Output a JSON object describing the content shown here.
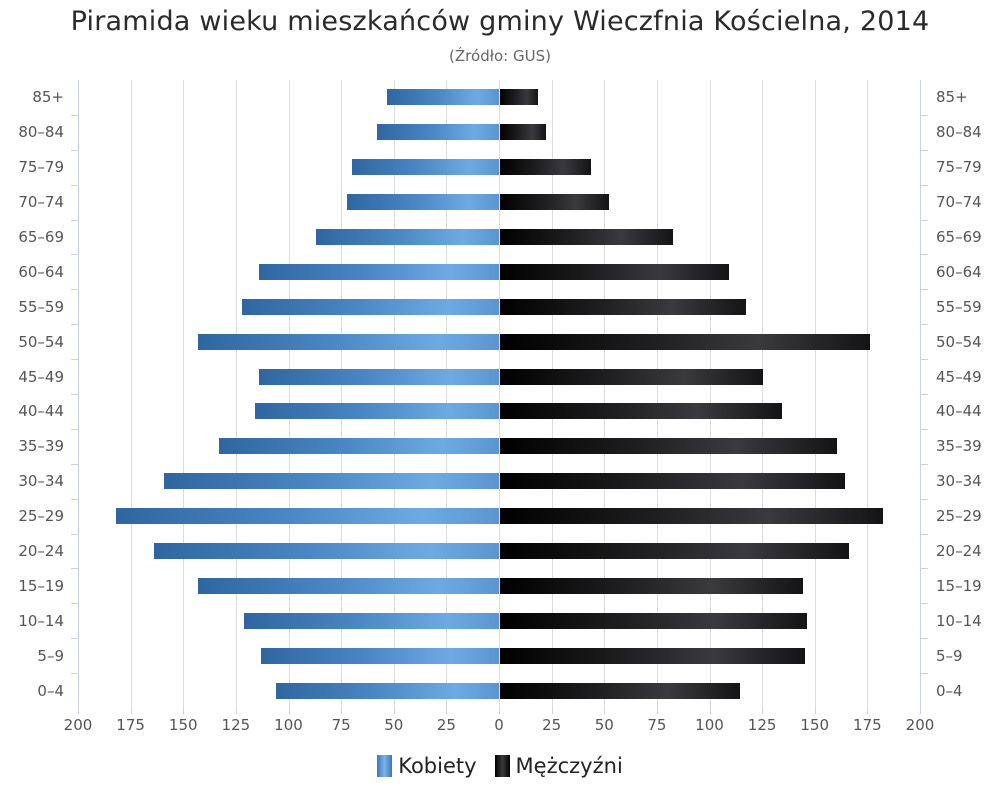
{
  "chart_data": {
    "type": "bar",
    "orientation": "horizontal",
    "subtype": "population-pyramid",
    "title": "Piramida wieku mieszkańców gminy Wieczfnia Kościelna, 2014",
    "subtitle": "(Źródło: GUS)",
    "xlabel": "",
    "ylabel": "",
    "xlim": [
      -200,
      200
    ],
    "x_ticks": [
      "200",
      "175",
      "150",
      "125",
      "100",
      "75",
      "50",
      "25",
      "0",
      "25",
      "50",
      "75",
      "100",
      "125",
      "150",
      "175",
      "200"
    ],
    "grid": true,
    "legend_position": "bottom",
    "categories": [
      "85+",
      "80-84",
      "75-79",
      "70-74",
      "65-69",
      "60-64",
      "55-59",
      "50-54",
      "45-49",
      "40-44",
      "35-39",
      "30-34",
      "25-29",
      "20-24",
      "15-19",
      "10-14",
      "5-9",
      "0-4"
    ],
    "series": [
      {
        "name": "Kobiety",
        "side": "left",
        "color": "#4a87c4",
        "values": [
          53,
          58,
          70,
          72,
          87,
          114,
          122,
          143,
          114,
          116,
          133,
          159,
          182,
          164,
          143,
          121,
          113,
          106
        ]
      },
      {
        "name": "Mężczyźni",
        "side": "right",
        "color": "#1a1a1a",
        "values": [
          18,
          22,
          43,
          52,
          82,
          109,
          117,
          176,
          125,
          134,
          160,
          164,
          182,
          166,
          144,
          146,
          145,
          114
        ]
      }
    ]
  },
  "legend": {
    "female": "Kobiety",
    "male": "Mężczyźni"
  }
}
